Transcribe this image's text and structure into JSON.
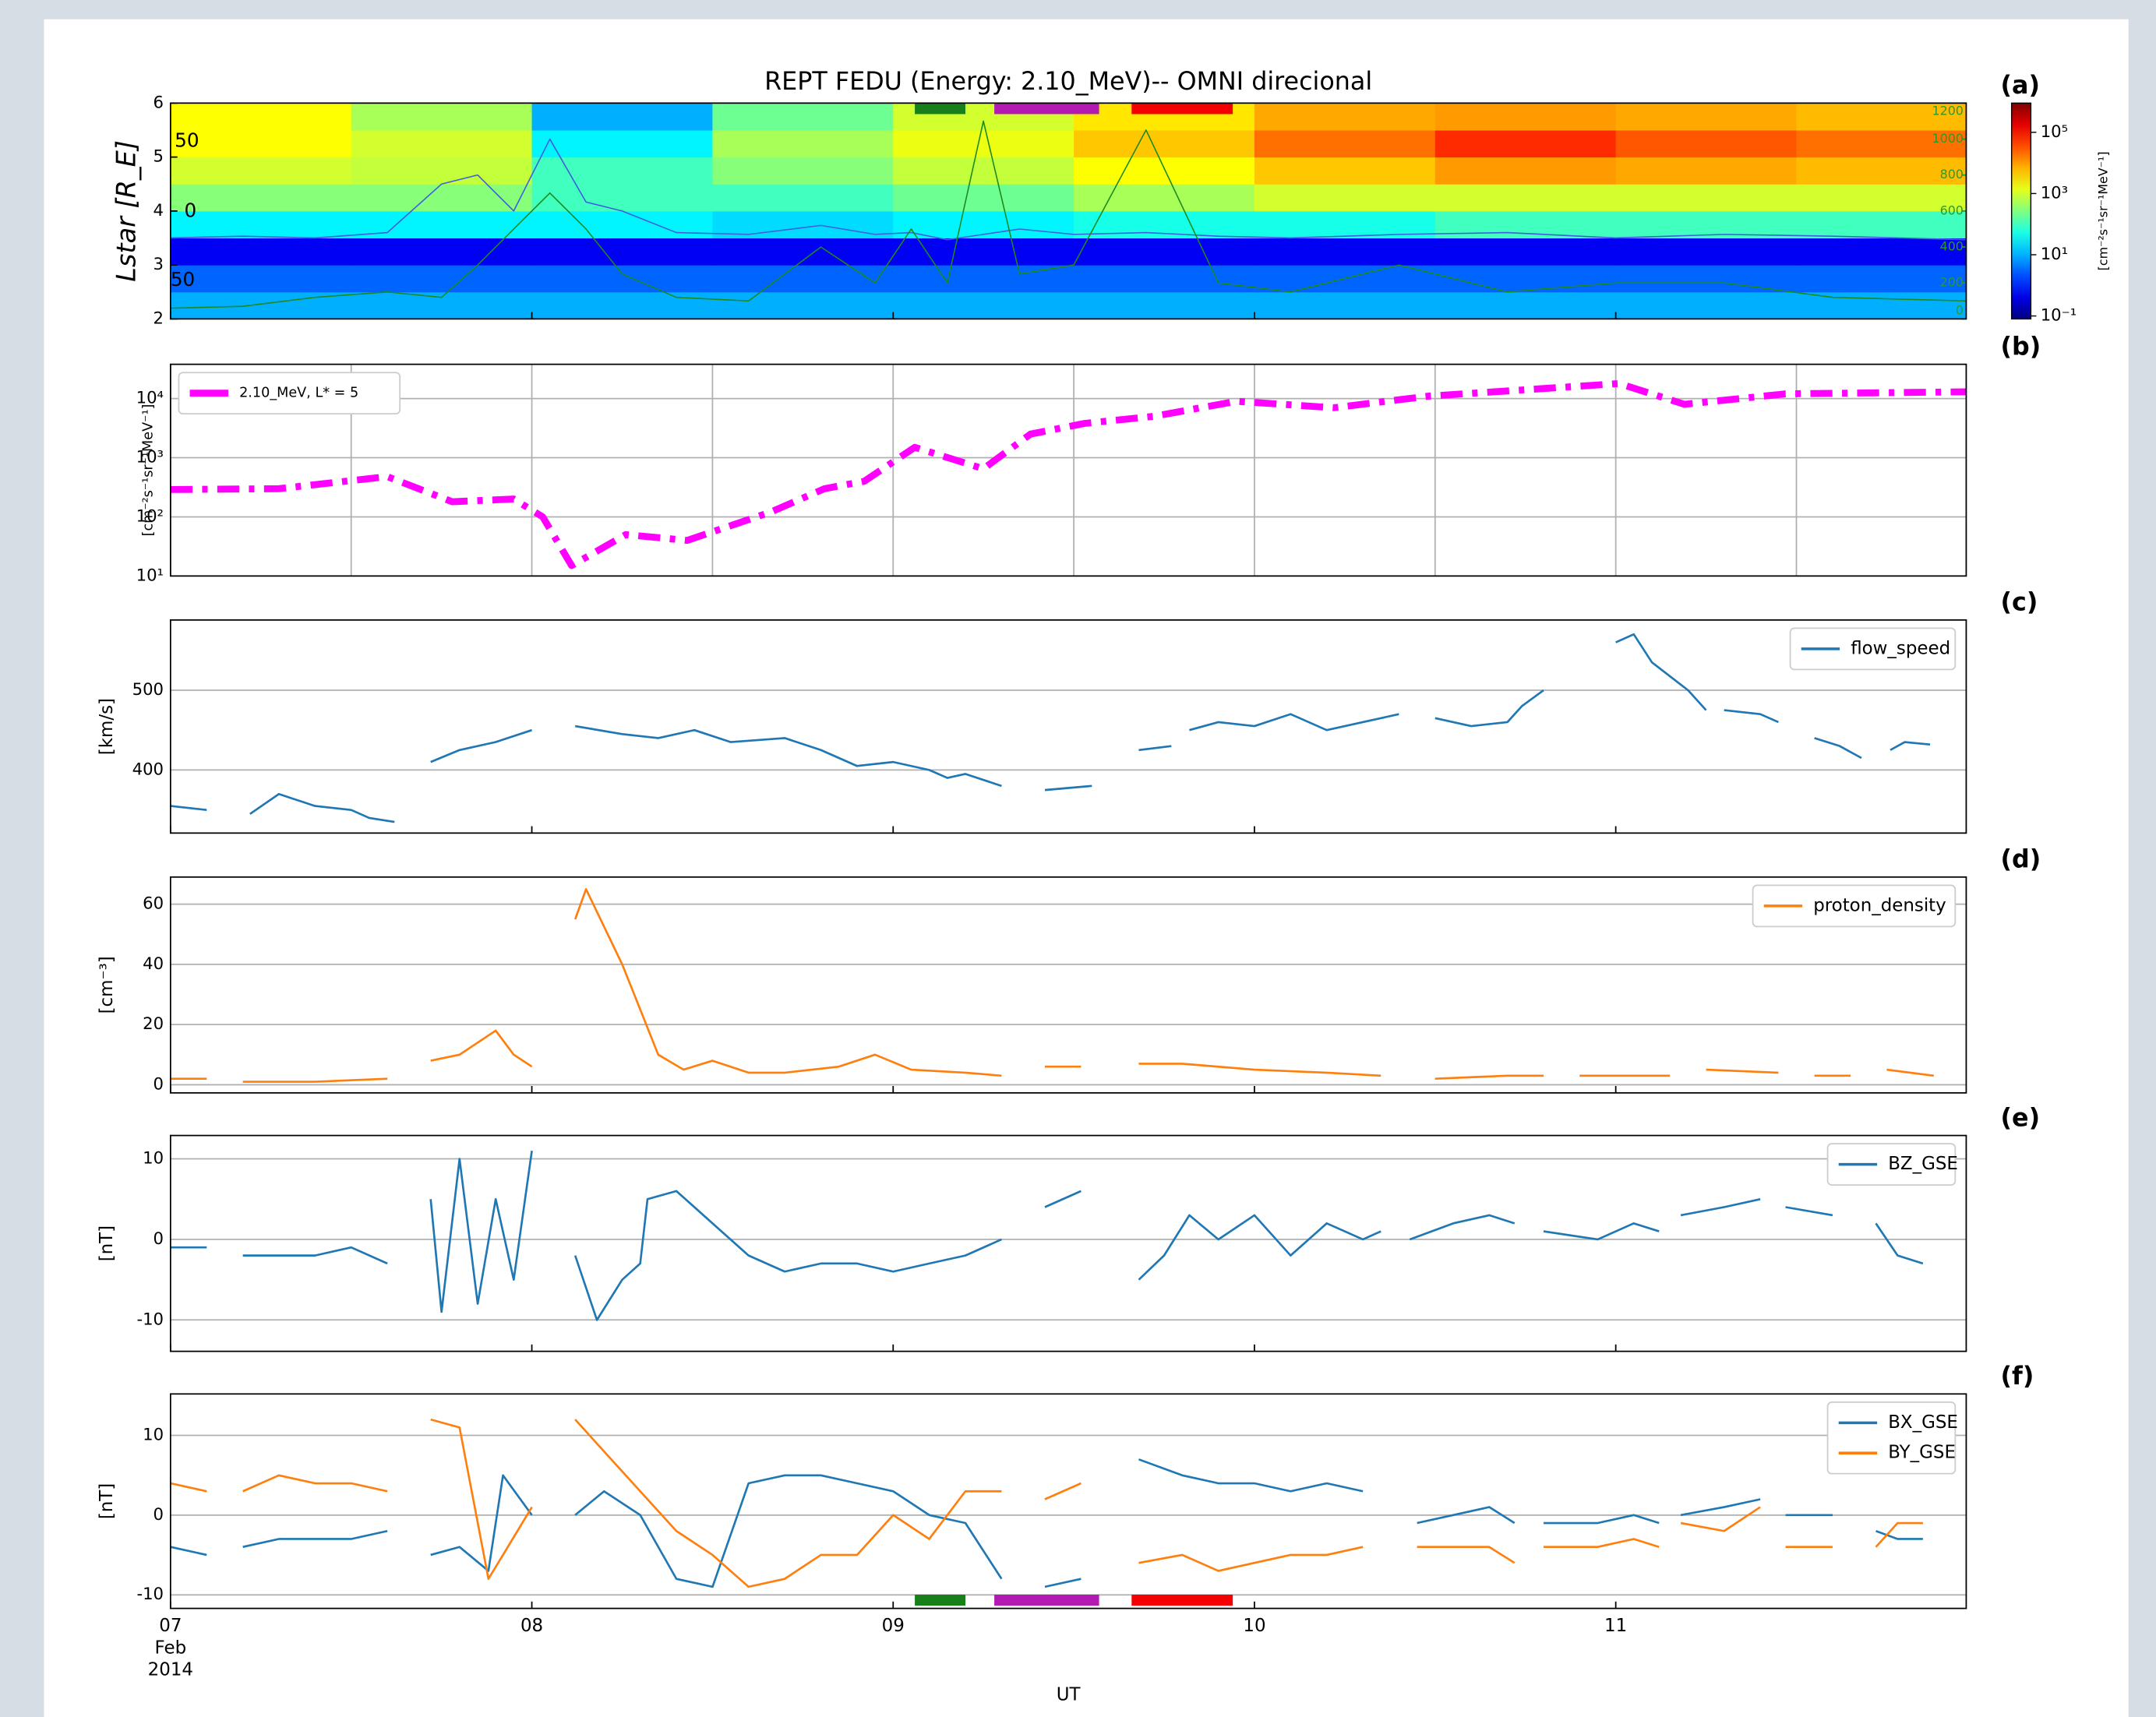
{
  "chart_data": [
    {
      "type": "heatmap",
      "title": "REPT FEDU (Energy: 2.10_MeV)-- OMNI direcional",
      "panel_label": "(a)",
      "ylabel": "Lstar [R_E]",
      "xlim": [
        0,
        4.97
      ],
      "xticks": [
        0,
        1,
        2,
        3,
        4
      ],
      "ylim": [
        2,
        6
      ],
      "yticks": [
        2,
        3,
        4,
        5,
        6
      ],
      "y2lim": [
        0,
        1200
      ],
      "y2ticks": [
        0,
        200,
        400,
        600,
        800,
        1000,
        1200
      ],
      "y2_color": "#2a9a2a",
      "inner_labels": [
        "50",
        "0",
        "50"
      ],
      "x_edges": [
        0,
        0.5,
        1,
        1.5,
        2,
        2.5,
        3,
        3.5,
        4,
        4.5,
        4.97
      ],
      "y_edges": [
        2,
        2.5,
        3,
        3.5,
        4,
        4.5,
        5,
        5.5,
        6
      ],
      "z": [
        [
          10,
          10,
          10,
          10,
          10,
          10,
          10,
          10,
          10,
          10
        ],
        [
          3,
          3,
          3,
          3,
          3,
          3,
          3,
          3,
          3,
          3
        ],
        [
          0.5,
          0.5,
          0.5,
          0.5,
          0.5,
          0.5,
          0.5,
          0.5,
          0.5,
          0.5
        ],
        [
          30,
          30,
          30,
          20,
          30,
          50,
          50,
          100,
          100,
          100
        ],
        [
          300,
          300,
          100,
          100,
          200,
          500,
          1000,
          1000,
          1000,
          1000
        ],
        [
          1000,
          800,
          100,
          300,
          800,
          2000,
          5000,
          10000,
          8000,
          6000
        ],
        [
          2000,
          1000,
          30,
          500,
          1500,
          5000,
          20000,
          60000,
          30000,
          20000
        ],
        [
          2000,
          500,
          10,
          200,
          1000,
          3000,
          8000,
          10000,
          8000,
          6000
        ]
      ],
      "zscale": "log",
      "colormap": "jet",
      "zlim": [
        0.08,
        900000
      ],
      "zticks": [
        {
          "value": 0.1,
          "label": "10⁻¹"
        },
        {
          "value": 10,
          "label": "10¹"
        },
        {
          "value": 1000,
          "label": "10³"
        },
        {
          "value": 100000,
          "label": "10⁵"
        }
      ],
      "zlabel": "[cm⁻²s⁻¹sr⁻¹MeV⁻¹]",
      "x": [
        0,
        0.2,
        0.4,
        0.6,
        0.75,
        0.85,
        0.95,
        1.05,
        1.15,
        1.25,
        1.4,
        1.6,
        1.8,
        1.95,
        2.05,
        2.15,
        2.25,
        2.35,
        2.5,
        2.7,
        2.9,
        3.1,
        3.4,
        3.7,
        4.0,
        4.3,
        4.6,
        4.97
      ],
      "series": [
        {
          "color": "#3e5ee0",
          "axis": "y2",
          "values": [
            450,
            460,
            450,
            480,
            750,
            800,
            600,
            1000,
            650,
            600,
            480,
            470,
            520,
            470,
            480,
            440,
            470,
            500,
            470,
            480,
            460,
            450,
            470,
            480,
            450,
            470,
            460,
            440
          ]
        },
        {
          "color": "#1c8a1c",
          "axis": "y2",
          "values": [
            60,
            70,
            120,
            150,
            120,
            300,
            500,
            700,
            500,
            250,
            120,
            100,
            400,
            200,
            500,
            200,
            1100,
            250,
            300,
            1050,
            200,
            150,
            300,
            150,
            200,
            200,
            120,
            100
          ]
        }
      ],
      "spans": [
        {
          "start": 2.06,
          "end": 2.2,
          "color": "#17801a"
        },
        {
          "start": 2.28,
          "end": 2.57,
          "color": "#b21ab2"
        },
        {
          "start": 2.66,
          "end": 2.94,
          "color": "#f40000"
        }
      ]
    },
    {
      "type": "line",
      "panel_label": "(b)",
      "ylabel": "[cm⁻²s⁻¹sr⁻¹MeV⁻¹]",
      "yscale": "log",
      "ylim": [
        10,
        38000
      ],
      "yticks": [
        {
          "value": 10,
          "label": "10¹"
        },
        {
          "value": 100,
          "label": "10²"
        },
        {
          "value": 1000,
          "label": "10³"
        },
        {
          "value": 10000,
          "label": "10⁴"
        }
      ],
      "xlim": [
        0,
        4.97
      ],
      "xticks": [
        0,
        0.5,
        1,
        1.5,
        2,
        2.5,
        3,
        3.5,
        4,
        4.5
      ],
      "grid": "both",
      "legend": "upper left",
      "x": [
        0,
        0.3,
        0.6,
        0.78,
        0.95,
        1.03,
        1.11,
        1.26,
        1.43,
        1.66,
        1.81,
        1.92,
        2.06,
        2.25,
        2.38,
        2.53,
        2.72,
        2.95,
        3.22,
        3.48,
        4.01,
        4.19,
        4.47,
        4.97
      ],
      "series": [
        {
          "name": "2.10_MeV, L* = 5",
          "color": "#ff00ff",
          "linestyle": "dashdot",
          "values": [
            290,
            300,
            480,
            180,
            200,
            100,
            15,
            50,
            40,
            120,
            300,
            400,
            1500,
            650,
            2500,
            3800,
            5000,
            9000,
            7000,
            11000,
            18000,
            8000,
            12000,
            13000
          ]
        }
      ]
    },
    {
      "type": "line",
      "panel_label": "(c)",
      "ylabel": "[km/s]",
      "ylim": [
        321,
        588
      ],
      "yticks": [
        400,
        500
      ],
      "xlim": [
        0,
        4.97
      ],
      "xticks": [
        0,
        1,
        2,
        3,
        4
      ],
      "grid": "y",
      "legend": "upper right",
      "x": [
        0,
        0.1,
        0.15,
        0.22,
        0.3,
        0.4,
        0.5,
        0.55,
        0.62,
        0.68,
        0.72,
        0.8,
        0.9,
        1.0,
        1.02,
        1.12,
        1.25,
        1.35,
        1.45,
        1.55,
        1.7,
        1.8,
        1.9,
        2.0,
        2.1,
        2.15,
        2.2,
        2.3,
        2.35,
        2.42,
        2.55,
        2.6,
        2.68,
        2.77,
        2.8,
        2.82,
        2.9,
        3.0,
        3.1,
        3.2,
        3.3,
        3.4,
        3.45,
        3.5,
        3.6,
        3.7,
        3.74,
        3.8,
        3.85,
        4.0,
        4.05,
        4.1,
        4.2,
        4.25,
        4.28,
        4.3,
        4.4,
        4.45,
        4.5,
        4.55,
        4.62,
        4.68,
        4.72,
        4.76,
        4.8,
        4.87
      ],
      "series": [
        {
          "name": "flow_speed",
          "color": "#1f77b4",
          "values": [
            355,
            350,
            null,
            345,
            370,
            355,
            350,
            340,
            335,
            null,
            410,
            425,
            435,
            450,
            null,
            455,
            445,
            440,
            450,
            435,
            440,
            425,
            405,
            410,
            400,
            390,
            395,
            380,
            null,
            375,
            380,
            null,
            425,
            430,
            null,
            450,
            460,
            455,
            470,
            450,
            460,
            470,
            null,
            465,
            455,
            460,
            480,
            500,
            null,
            560,
            570,
            535,
            500,
            475,
            null,
            475,
            470,
            460,
            null,
            440,
            430,
            415,
            null,
            425,
            435,
            432
          ]
        }
      ]
    },
    {
      "type": "line",
      "panel_label": "(d)",
      "ylabel": "[cm⁻³]",
      "ylim": [
        -2.7,
        69
      ],
      "yticks": [
        0,
        20,
        40,
        60
      ],
      "xlim": [
        0,
        4.97
      ],
      "xticks": [
        0,
        1,
        2,
        3,
        4
      ],
      "grid": "y",
      "legend": "upper right",
      "x": [
        0,
        0.1,
        0.15,
        0.2,
        0.4,
        0.6,
        0.63,
        0.72,
        0.8,
        0.9,
        0.95,
        1.0,
        1.02,
        1.12,
        1.15,
        1.25,
        1.3,
        1.35,
        1.42,
        1.5,
        1.6,
        1.7,
        1.85,
        1.95,
        2.05,
        2.2,
        2.3,
        2.35,
        2.42,
        2.52,
        2.6,
        2.68,
        2.8,
        3.0,
        3.2,
        3.35,
        3.4,
        3.5,
        3.7,
        3.8,
        3.82,
        3.9,
        4.15,
        4.2,
        4.25,
        4.45,
        4.5,
        4.55,
        4.65,
        4.7,
        4.75,
        4.88
      ],
      "series": [
        {
          "name": "proton_density",
          "color": "#ff7f0e",
          "values": [
            2,
            2,
            null,
            1,
            1,
            2,
            null,
            8,
            10,
            18,
            10,
            6,
            null,
            55,
            65,
            40,
            25,
            10,
            5,
            8,
            4,
            4,
            6,
            10,
            5,
            4,
            3,
            null,
            6,
            6,
            null,
            7,
            7,
            5,
            4,
            3,
            null,
            2,
            3,
            3,
            null,
            3,
            3,
            null,
            5,
            4,
            null,
            3,
            3,
            null,
            5,
            3
          ]
        }
      ]
    },
    {
      "type": "line",
      "panel_label": "(e)",
      "ylabel": "[nT]",
      "ylim": [
        -13.9,
        12.9
      ],
      "yticks": [
        -10,
        0,
        10
      ],
      "xlim": [
        0,
        4.97
      ],
      "xticks": [
        0,
        1,
        2,
        3,
        4
      ],
      "grid": "y",
      "legend": "upper right",
      "x": [
        0,
        0.1,
        0.15,
        0.2,
        0.4,
        0.5,
        0.6,
        0.63,
        0.72,
        0.75,
        0.8,
        0.85,
        0.9,
        0.95,
        1.0,
        1.02,
        1.12,
        1.18,
        1.25,
        1.3,
        1.32,
        1.4,
        1.5,
        1.6,
        1.7,
        1.8,
        1.9,
        2.0,
        2.1,
        2.2,
        2.3,
        2.35,
        2.42,
        2.52,
        2.6,
        2.68,
        2.75,
        2.82,
        2.9,
        3.0,
        3.1,
        3.2,
        3.3,
        3.35,
        3.4,
        3.43,
        3.55,
        3.65,
        3.72,
        3.73,
        3.8,
        3.95,
        4.05,
        4.12,
        4.15,
        4.18,
        4.3,
        4.4,
        4.42,
        4.47,
        4.6,
        4.65,
        4.72,
        4.78,
        4.85
      ],
      "series": [
        {
          "name": "BZ_GSE",
          "color": "#1f77b4",
          "values": [
            -1,
            -1,
            null,
            -2,
            -2,
            -1,
            -3,
            null,
            5,
            -9,
            10,
            -8,
            5,
            -5,
            11,
            null,
            -2,
            -10,
            -5,
            -3,
            5,
            6,
            2,
            -2,
            -4,
            -3,
            -3,
            -4,
            -3,
            -2,
            0,
            null,
            4,
            6,
            null,
            -5,
            -2,
            3,
            0,
            3,
            -2,
            2,
            0,
            1,
            null,
            0,
            2,
            3,
            2,
            null,
            1,
            0,
            2,
            1,
            null,
            3,
            4,
            5,
            null,
            4,
            3,
            null,
            2,
            -2,
            -3
          ]
        }
      ]
    },
    {
      "type": "line",
      "panel_label": "(f)",
      "ylabel": "[nT]",
      "xlabel": "UT",
      "ylim": [
        -11.7,
        15.2
      ],
      "yticks": [
        -10,
        0,
        10
      ],
      "xlim": [
        0,
        4.97
      ],
      "xticks": [
        {
          "value": 0,
          "label": "07"
        },
        {
          "value": 1,
          "label": "08"
        },
        {
          "value": 2,
          "label": "09"
        },
        {
          "value": 3,
          "label": "10"
        },
        {
          "value": 4,
          "label": "11"
        }
      ],
      "date_label": [
        "Feb",
        "2014"
      ],
      "grid": "y",
      "legend": "upper right",
      "x": [
        0,
        0.1,
        0.15,
        0.2,
        0.3,
        0.4,
        0.5,
        0.6,
        0.63,
        0.72,
        0.8,
        0.88,
        0.92,
        1.0,
        1.02,
        1.12,
        1.2,
        1.3,
        1.4,
        1.5,
        1.6,
        1.7,
        1.8,
        1.9,
        2.0,
        2.1,
        2.2,
        2.3,
        2.35,
        2.42,
        2.52,
        2.6,
        2.68,
        2.8,
        2.9,
        3.0,
        3.1,
        3.2,
        3.3,
        3.4,
        3.45,
        3.55,
        3.65,
        3.72,
        3.75,
        3.8,
        3.95,
        4.05,
        4.12,
        4.15,
        4.18,
        4.3,
        4.4,
        4.42,
        4.47,
        4.6,
        4.65,
        4.72,
        4.78,
        4.85
      ],
      "series": [
        {
          "name": "BX_GSE",
          "color": "#1f77b4",
          "values": [
            -4,
            -5,
            null,
            -4,
            -3,
            -3,
            -3,
            -2,
            null,
            -5,
            -4,
            -7,
            5,
            0,
            null,
            0,
            3,
            0,
            -8,
            -9,
            4,
            5,
            5,
            4,
            3,
            0,
            -1,
            -8,
            null,
            -9,
            -8,
            null,
            7,
            5,
            4,
            4,
            3,
            4,
            3,
            null,
            -1,
            0,
            1,
            -1,
            null,
            -1,
            -1,
            0,
            -1,
            null,
            0,
            1,
            2,
            null,
            0,
            0,
            null,
            -2,
            -3,
            -3
          ]
        },
        {
          "name": "BY_GSE",
          "color": "#ff7f0e",
          "values": [
            4,
            3,
            null,
            3,
            5,
            4,
            4,
            3,
            null,
            12,
            11,
            -8,
            -5,
            1,
            null,
            12,
            8,
            3,
            -2,
            -5,
            -9,
            -8,
            -5,
            -5,
            0,
            -3,
            3,
            3,
            null,
            2,
            4,
            null,
            -6,
            -5,
            -7,
            -6,
            -5,
            -5,
            -4,
            null,
            -4,
            -4,
            -4,
            -6,
            null,
            -4,
            -4,
            -3,
            -4,
            null,
            -1,
            -2,
            1,
            null,
            -4,
            -4,
            null,
            -4,
            -1,
            -1
          ]
        }
      ],
      "spans": [
        {
          "start": 2.06,
          "end": 2.2,
          "color": "#17801a"
        },
        {
          "start": 2.28,
          "end": 2.57,
          "color": "#b21ab2"
        },
        {
          "start": 2.66,
          "end": 2.94,
          "color": "#f40000"
        }
      ]
    }
  ]
}
